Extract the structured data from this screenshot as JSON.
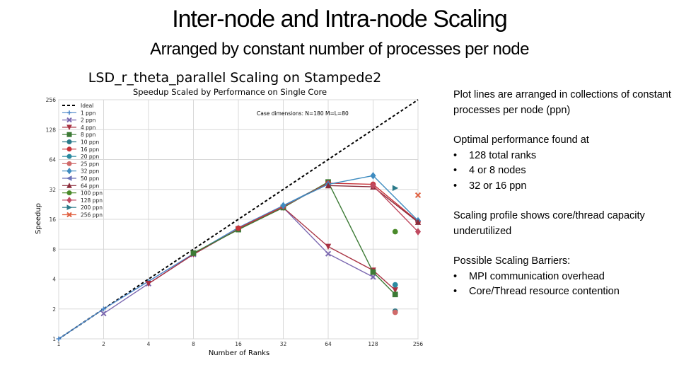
{
  "slide": {
    "title": "Inter-node and Intra-node Scaling",
    "subtitle": "Arranged by constant number of processes per node"
  },
  "notes": {
    "p1": "Plot lines are arranged in collections of constant processes per node (ppn)",
    "optimal_heading": "Optimal performance found at",
    "optimal_items": [
      "128 total ranks",
      "4 or 8 nodes",
      "32 or 16 ppn"
    ],
    "p3": "Scaling profile shows core/thread capacity underutilized",
    "barriers_heading": "Possible Scaling Barriers:",
    "barriers_items": [
      "MPI communication overhead",
      "Core/Thread resource contention"
    ]
  },
  "chart_data": {
    "type": "line",
    "title": "LSD_r_theta_parallel Scaling on Stampede2",
    "subtitle": "Speedup Scaled by Performance on Single Core",
    "annotation": "Case dimensions: N=180 M=L=80",
    "xlabel": "Number of Ranks",
    "ylabel": "Speedup",
    "x_scale": "log2",
    "y_scale": "log2",
    "xticks": [
      "1",
      "2",
      "4",
      "8",
      "16",
      "32",
      "64",
      "128",
      "256"
    ],
    "xtick_values": [
      1,
      2,
      4,
      8,
      16,
      32,
      64,
      128,
      256
    ],
    "yticks": [
      "1",
      "2",
      "4",
      "8",
      "16",
      "32",
      "64",
      "128",
      "256"
    ],
    "ytick_values": [
      1,
      2,
      4,
      8,
      16,
      32,
      64,
      128,
      256
    ],
    "xlim": [
      1,
      256
    ],
    "ylim": [
      1,
      256
    ],
    "grid": true,
    "legend_position": "upper-left",
    "series": [
      {
        "name": "Ideal",
        "color": "#000000",
        "marker": "none",
        "dash": true,
        "points": [
          [
            1,
            1
          ],
          [
            256,
            256
          ]
        ]
      },
      {
        "name": "1 ppn",
        "color": "#4a86c8",
        "marker": "plus",
        "points": [
          [
            1,
            1
          ],
          [
            2,
            2
          ],
          [
            4,
            3.8
          ],
          [
            8,
            7.2
          ],
          [
            16,
            13.2
          ],
          [
            32,
            22
          ],
          [
            64,
            37
          ]
        ]
      },
      {
        "name": "2 ppn",
        "color": "#7b68b0",
        "marker": "x",
        "points": [
          [
            2,
            1.8
          ],
          [
            4,
            3.6
          ],
          [
            8,
            7.1
          ],
          [
            16,
            12.8
          ],
          [
            32,
            21
          ],
          [
            64,
            7.2
          ],
          [
            128,
            4.2
          ]
        ]
      },
      {
        "name": "4 ppn",
        "color": "#a83242",
        "marker": "tri_down",
        "points": [
          [
            4,
            3.6
          ],
          [
            8,
            7.1
          ],
          [
            16,
            12.8
          ],
          [
            32,
            21
          ],
          [
            64,
            8.5
          ],
          [
            128,
            4.9
          ],
          [
            180,
            3.1
          ]
        ]
      },
      {
        "name": "8 ppn",
        "color": "#3c7a35",
        "marker": "square",
        "points": [
          [
            8,
            7.3
          ],
          [
            16,
            12.6
          ],
          [
            32,
            21
          ],
          [
            64,
            38
          ],
          [
            128,
            4.7
          ],
          [
            180,
            2.8
          ]
        ]
      },
      {
        "name": "10 ppn",
        "color": "#2b7a8a",
        "marker": "circle",
        "points": [
          [
            180,
            1.9
          ]
        ]
      },
      {
        "name": "16 ppn",
        "color": "#c7343a",
        "marker": "circle",
        "points": [
          [
            16,
            13
          ],
          [
            32,
            21.5
          ],
          [
            64,
            37
          ],
          [
            128,
            36
          ],
          [
            256,
            15.2
          ]
        ]
      },
      {
        "name": "20 ppn",
        "color": "#2b8aa0",
        "marker": "circle",
        "points": [
          [
            180,
            3.5
          ]
        ]
      },
      {
        "name": "25 ppn",
        "color": "#d06a6a",
        "marker": "circle",
        "points": [
          [
            180,
            1.85
          ]
        ]
      },
      {
        "name": "32 ppn",
        "color": "#3f8cc0",
        "marker": "diamond",
        "points": [
          [
            32,
            22
          ],
          [
            64,
            36
          ],
          [
            128,
            44
          ],
          [
            256,
            15.5
          ]
        ]
      },
      {
        "name": "50 ppn",
        "color": "#6a70b8",
        "marker": "tri_left",
        "points": []
      },
      {
        "name": "64 ppn",
        "color": "#8a2a3a",
        "marker": "tri_up",
        "points": [
          [
            64,
            35
          ],
          [
            128,
            34
          ],
          [
            256,
            15
          ]
        ]
      },
      {
        "name": "100 ppn",
        "color": "#4a8a2a",
        "marker": "circle",
        "points": [
          [
            180,
            12
          ]
        ]
      },
      {
        "name": "128 ppn",
        "color": "#c04a60",
        "marker": "diamond",
        "points": [
          [
            128,
            35
          ],
          [
            256,
            12
          ]
        ]
      },
      {
        "name": "200 ppn",
        "color": "#2b7a8a",
        "marker": "tri_right",
        "points": [
          [
            180,
            33
          ]
        ]
      },
      {
        "name": "256 ppn",
        "color": "#e06040",
        "marker": "x",
        "points": [
          [
            256,
            28
          ]
        ]
      }
    ]
  }
}
